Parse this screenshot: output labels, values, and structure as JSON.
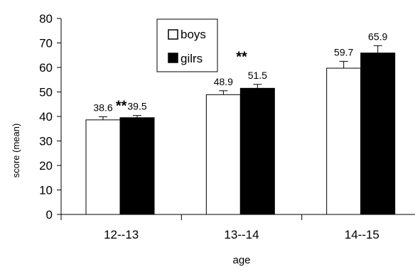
{
  "chart_data": {
    "type": "bar",
    "categories": [
      "12--13",
      "13--14",
      "14--15"
    ],
    "series": [
      {
        "name": "boys",
        "values": [
          38.6,
          48.9,
          59.7
        ],
        "errors": [
          1.3,
          1.6,
          2.8
        ],
        "color": "#ffffff"
      },
      {
        "name": "gilrs",
        "values": [
          39.5,
          51.5,
          65.9
        ],
        "errors": [
          0.9,
          1.6,
          3.0
        ],
        "color": "#000000"
      }
    ],
    "data_labels": {
      "boys": [
        "38.6",
        "48.9",
        "59.7"
      ],
      "gilrs": [
        "39.5",
        "51.5",
        "65.9"
      ]
    },
    "annotations": [
      {
        "text": "**",
        "x": 1.5,
        "y": 44.5
      },
      {
        "text": "**",
        "x": 2.5,
        "y": 64.5
      }
    ],
    "xlabel": "age",
    "ylabel": "score  (mean)",
    "ylim": [
      0,
      80
    ],
    "yticks": [
      "0",
      "10",
      "20",
      "30",
      "40",
      "50",
      "60",
      "70",
      "80"
    ],
    "grid": false,
    "legend": {
      "position": "top-center",
      "entries": [
        "boys",
        "gilrs"
      ]
    }
  }
}
